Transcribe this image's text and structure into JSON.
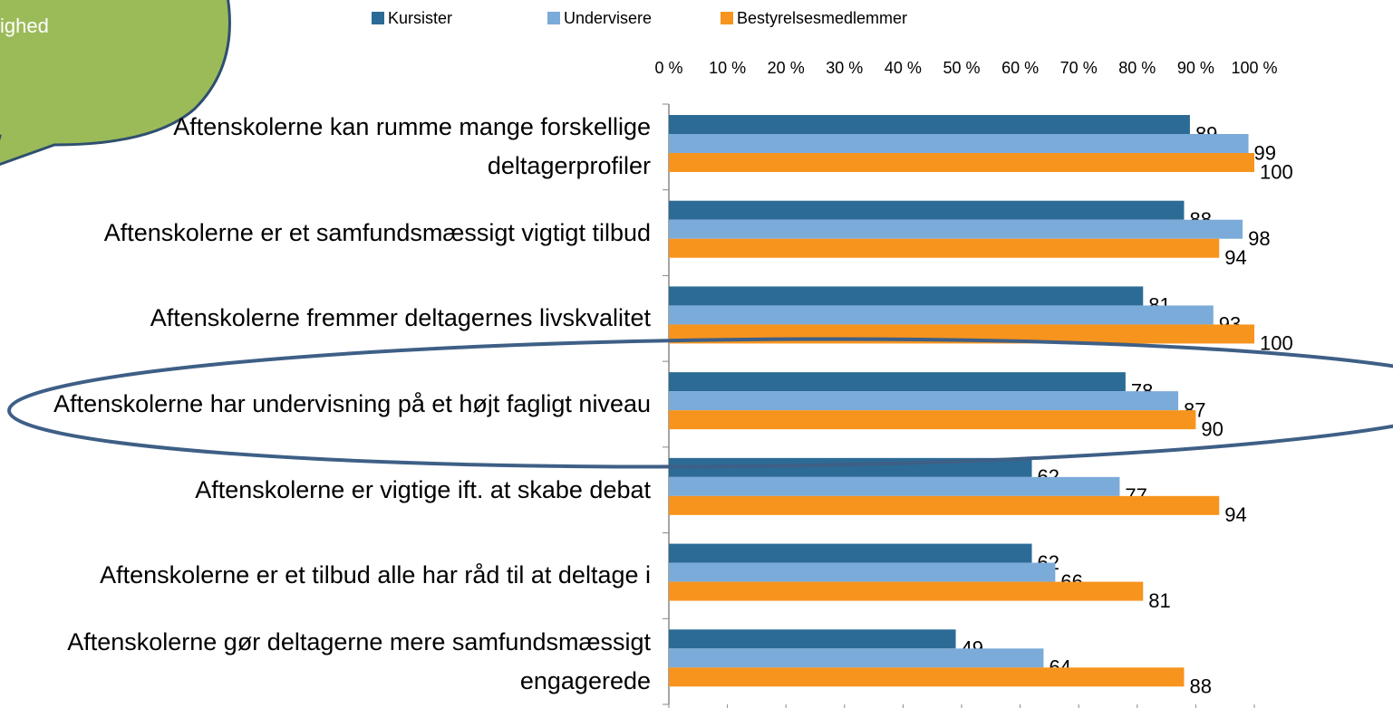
{
  "chart_data": {
    "type": "bar",
    "orientation": "horizontal",
    "annotation": "ighed",
    "categories": [
      "Aftenskolerne kan rumme mange forskellige deltagerprofiler",
      "Aftenskolerne er et samfundsmæssigt vigtigt tilbud",
      "Aftenskolerne fremmer deltagernes livskvalitet",
      "Aftenskolerne har undervisning på et højt fagligt niveau",
      "Aftenskolerne er vigtige ift. at skabe debat",
      "Aftenskolerne er et tilbud alle har råd til at deltage i",
      "Aftenskolerne gør deltagerne mere samfundsmæssigt engagerede"
    ],
    "series": [
      {
        "name": "Kursister",
        "color": "#2c6b95",
        "values": [
          89,
          88,
          81,
          78,
          62,
          62,
          49
        ]
      },
      {
        "name": "Undervisere",
        "color": "#7babd9",
        "values": [
          99,
          98,
          93,
          87,
          77,
          66,
          64
        ]
      },
      {
        "name": "Bestyrelsesmedlemmer",
        "color": "#f7941d",
        "values": [
          100,
          94,
          100,
          90,
          94,
          81,
          88
        ]
      }
    ],
    "xlim": [
      0,
      100
    ],
    "xticks": [
      {
        "value": 0,
        "label": "0 %"
      },
      {
        "value": 10,
        "label": "10 %"
      },
      {
        "value": 20,
        "label": "20 %"
      },
      {
        "value": 30,
        "label": "30 %"
      },
      {
        "value": 40,
        "label": "40 %"
      },
      {
        "value": 50,
        "label": "50 %"
      },
      {
        "value": 60,
        "label": "60 %"
      },
      {
        "value": 70,
        "label": "70 %"
      },
      {
        "value": 80,
        "label": "80 %"
      },
      {
        "value": 90,
        "label": "90 %"
      },
      {
        "value": 100,
        "label": "100 %"
      }
    ],
    "legend": "top"
  }
}
